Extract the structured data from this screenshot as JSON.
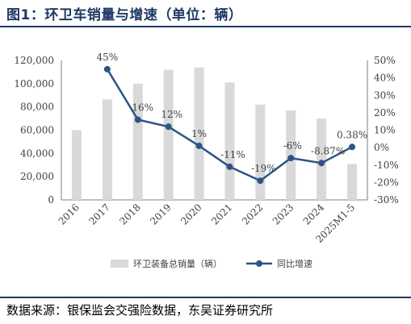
{
  "figure": {
    "title": "图1：环卫车销量与增速（单位：辆）",
    "source": "数据来源：银保监会交强险数据，东吴证券研究所"
  },
  "colors": {
    "bar": "#d9d9d9",
    "line": "#2e5387",
    "axis": "#7f7f7f",
    "title": "#1f3864"
  },
  "chart_data": {
    "type": "bar+line",
    "categories": [
      "2016",
      "2017",
      "2018",
      "2019",
      "2020",
      "2021",
      "2022",
      "2023",
      "2024",
      "2025M1-5"
    ],
    "series": [
      {
        "name": "环卫装备总销量（辆）",
        "type": "bar",
        "axis": "left",
        "values": [
          60000,
          86500,
          100000,
          112000,
          114000,
          101000,
          82000,
          77000,
          70000,
          31000
        ]
      },
      {
        "name": "同比增速",
        "type": "line",
        "axis": "right",
        "values": [
          null,
          45,
          16,
          12,
          1,
          -11,
          -19,
          -6,
          -8.87,
          0.38
        ],
        "labels": [
          "",
          "45%",
          "16%",
          "12%",
          "1%",
          "-11%",
          "-19%",
          "-6%",
          "-8.87%",
          "0.38%"
        ]
      }
    ],
    "y_left": {
      "min": 0,
      "max": 120000,
      "step": 20000,
      "ticks": [
        "0",
        "20,000",
        "40,000",
        "60,000",
        "80,000",
        "100,000",
        "120,000"
      ]
    },
    "y_right": {
      "min": -30,
      "max": 50,
      "step": 10,
      "ticks": [
        "-30%",
        "-20%",
        "-10%",
        "0%",
        "10%",
        "20%",
        "30%",
        "40%",
        "50%"
      ]
    },
    "grid": false,
    "legend_position": "bottom"
  }
}
